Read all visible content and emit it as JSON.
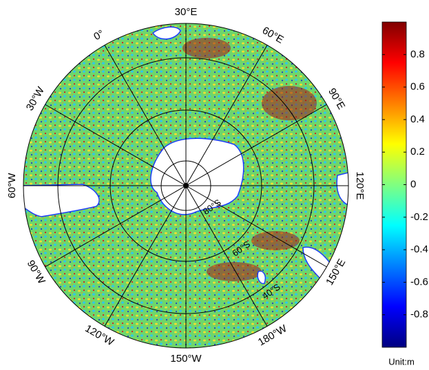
{
  "map": {
    "meridian_labels": [
      "30°E",
      "60°E",
      "90°E",
      "120°E",
      "150°E",
      "180°W",
      "150°W",
      "120°W",
      "90°W",
      "60°W",
      "30°W",
      "0°"
    ],
    "latitude_labels": [
      "80°S",
      "60°S",
      "40°S"
    ]
  },
  "colorbar": {
    "range": [
      -1,
      1
    ],
    "ticks": [
      0.8,
      0.6,
      0.4,
      0.2,
      0,
      -0.2,
      -0.4,
      -0.6,
      -0.8
    ],
    "unit_label": "Unit:m"
  }
}
